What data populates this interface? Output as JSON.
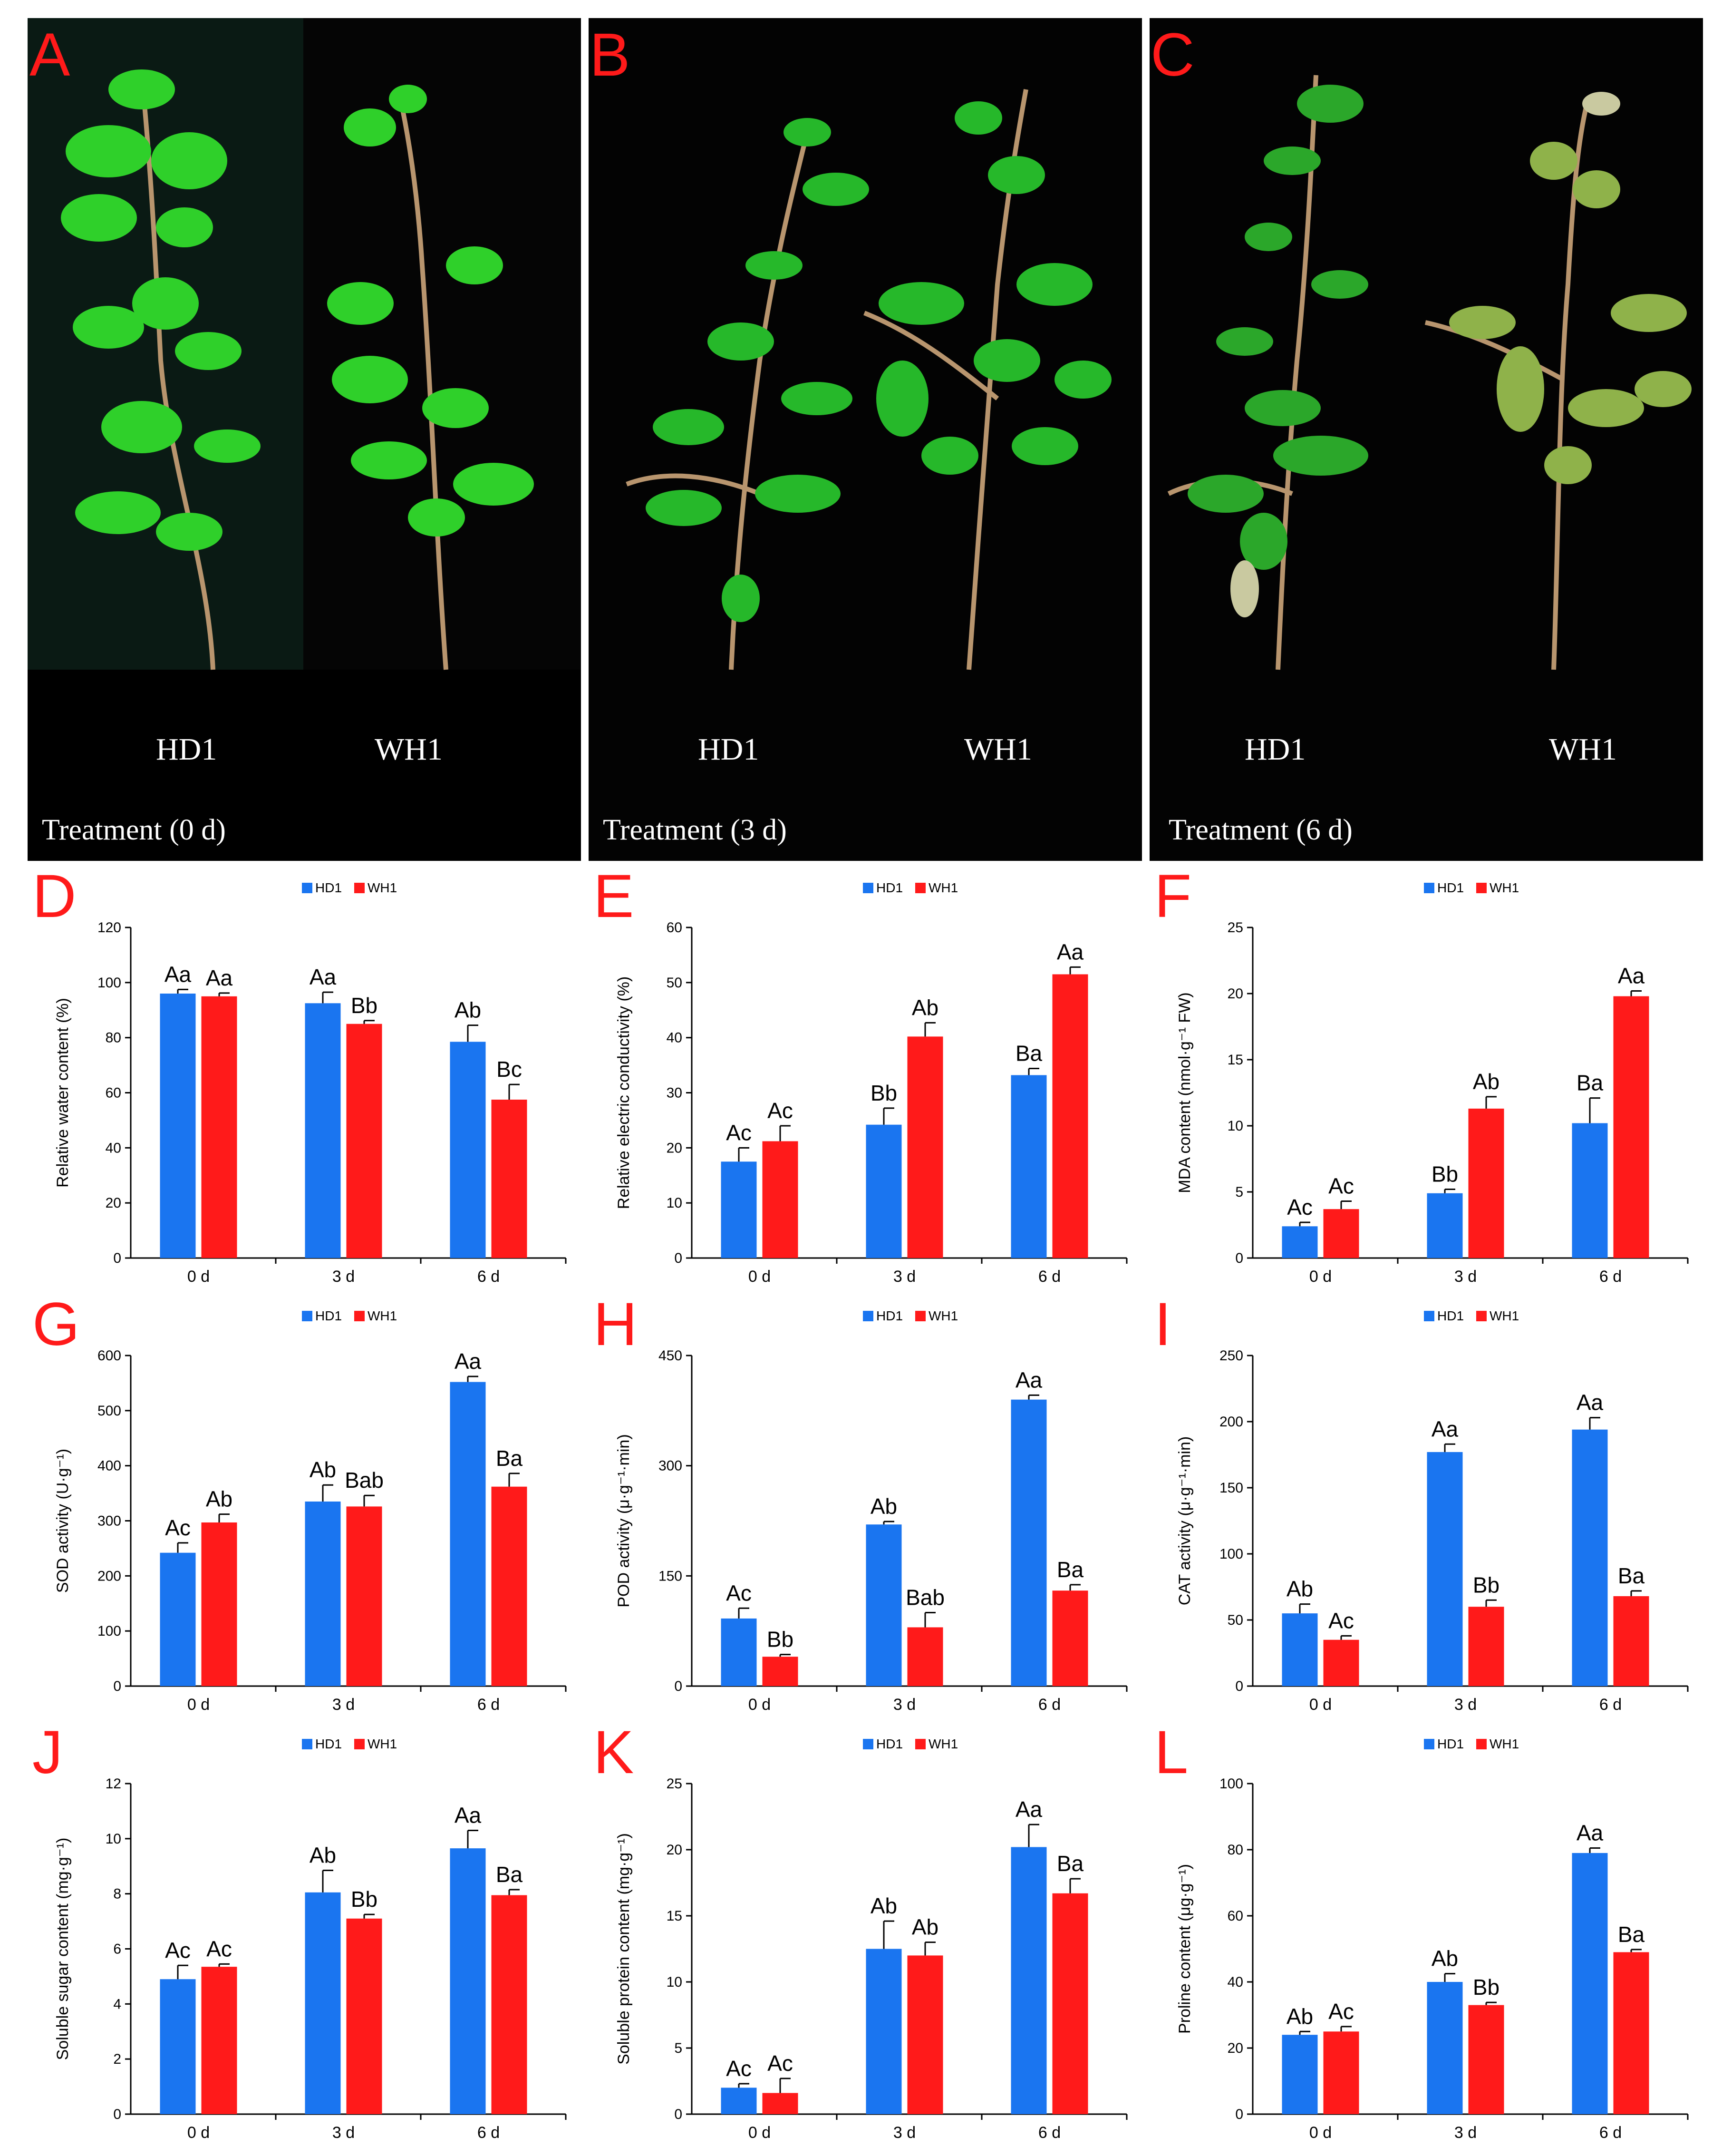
{
  "photos": [
    {
      "letter": "A",
      "left_label": "HD1",
      "right_label": "WH1",
      "caption": "Treatment (0 d)"
    },
    {
      "letter": "B",
      "left_label": "HD1",
      "right_label": "WH1",
      "caption": "Treatment (3 d)"
    },
    {
      "letter": "C",
      "left_label": "HD1",
      "right_label": "WH1",
      "caption": "Treatment (6 d)"
    }
  ],
  "colors": {
    "hd1": "#1a75f0",
    "wh1": "#ff1a1a",
    "letter": "#ff1a1a"
  },
  "chart_data": [
    {
      "letter": "D",
      "type": "bar",
      "ylabel": "Relative water content (%)",
      "ylim": [
        0,
        120
      ],
      "yticks": [
        0,
        20,
        40,
        60,
        80,
        100,
        120
      ],
      "categories": [
        "0 d",
        "3 d",
        "6 d"
      ],
      "legend": [
        "HD1",
        "WH1"
      ],
      "series": [
        {
          "name": "HD1",
          "values": [
            96,
            92.5,
            78.5
          ],
          "errors": [
            1.5,
            4,
            6
          ],
          "labels": [
            "Aa",
            "Aa",
            "Ab"
          ]
        },
        {
          "name": "WH1",
          "values": [
            95,
            85,
            57.5
          ],
          "errors": [
            1.2,
            1.2,
            5.5
          ],
          "labels": [
            "Aa",
            "Bb",
            "Bc"
          ]
        }
      ]
    },
    {
      "letter": "E",
      "type": "bar",
      "ylabel": "Relative electric conductivity (%)",
      "ylim": [
        0,
        60
      ],
      "yticks": [
        0,
        10,
        20,
        30,
        40,
        50,
        60
      ],
      "categories": [
        "0 d",
        "3 d",
        "6 d"
      ],
      "legend": [
        "HD1",
        "WH1"
      ],
      "series": [
        {
          "name": "HD1",
          "values": [
            17.5,
            24.2,
            33.2
          ],
          "errors": [
            2.5,
            3,
            1.2
          ],
          "labels": [
            "Ac",
            "Bb",
            "Ba"
          ]
        },
        {
          "name": "WH1",
          "values": [
            21.2,
            40.2,
            51.5
          ],
          "errors": [
            2.8,
            2.5,
            1.3
          ],
          "labels": [
            "Ac",
            "Ab",
            "Aa"
          ]
        }
      ]
    },
    {
      "letter": "F",
      "type": "bar",
      "ylabel": "MDA content (nmol·g⁻¹ FW)",
      "ylim": [
        0,
        25
      ],
      "yticks": [
        0,
        5,
        10,
        15,
        20,
        25
      ],
      "categories": [
        "0 d",
        "3 d",
        "6 d"
      ],
      "legend": [
        "HD1",
        "WH1"
      ],
      "series": [
        {
          "name": "HD1",
          "values": [
            2.4,
            4.9,
            10.2
          ],
          "errors": [
            0.3,
            0.3,
            1.9
          ],
          "labels": [
            "Ac",
            "Bb",
            "Ba"
          ]
        },
        {
          "name": "WH1",
          "values": [
            3.7,
            11.3,
            19.8
          ],
          "errors": [
            0.6,
            0.9,
            0.4
          ],
          "labels": [
            "Ac",
            "Ab",
            "Aa"
          ]
        }
      ]
    },
    {
      "letter": "G",
      "type": "bar",
      "ylabel": "SOD activity (U·g⁻¹)",
      "ylim": [
        0,
        600
      ],
      "yticks": [
        0,
        100,
        200,
        300,
        400,
        500,
        600
      ],
      "categories": [
        "0 d",
        "3 d",
        "6 d"
      ],
      "legend": [
        "HD1",
        "WH1"
      ],
      "series": [
        {
          "name": "HD1",
          "values": [
            242,
            335,
            552
          ],
          "errors": [
            18,
            30,
            10
          ],
          "labels": [
            "Ac",
            "Ab",
            "Aa"
          ]
        },
        {
          "name": "WH1",
          "values": [
            297,
            326,
            362
          ],
          "errors": [
            15,
            20,
            24
          ],
          "labels": [
            "Ab",
            "Bab",
            "Ba"
          ]
        }
      ]
    },
    {
      "letter": "H",
      "type": "bar",
      "ylabel": "POD activity (μ·g⁻¹·min)",
      "ylim": [
        0,
        450
      ],
      "yticks": [
        0,
        150,
        300,
        450
      ],
      "categories": [
        "0 d",
        "3 d",
        "6 d"
      ],
      "legend": [
        "HD1",
        "WH1"
      ],
      "series": [
        {
          "name": "HD1",
          "values": [
            92,
            220,
            390
          ],
          "errors": [
            14,
            4,
            6
          ],
          "labels": [
            "Ac",
            "Ab",
            "Aa"
          ]
        },
        {
          "name": "WH1",
          "values": [
            40,
            80,
            130
          ],
          "errors": [
            3,
            20,
            8
          ],
          "labels": [
            "Bb",
            "Bab",
            "Ba"
          ]
        }
      ]
    },
    {
      "letter": "I",
      "type": "bar",
      "ylabel": "CAT activity (μ·g⁻¹·min)",
      "ylim": [
        0,
        250
      ],
      "yticks": [
        0,
        50,
        100,
        150,
        200,
        250
      ],
      "categories": [
        "0 d",
        "3 d",
        "6 d"
      ],
      "legend": [
        "HD1",
        "WH1"
      ],
      "series": [
        {
          "name": "HD1",
          "values": [
            55,
            177,
            194
          ],
          "errors": [
            7,
            6,
            9
          ],
          "labels": [
            "Ab",
            "Aa",
            "Aa"
          ]
        },
        {
          "name": "WH1",
          "values": [
            35,
            60,
            68
          ],
          "errors": [
            3,
            5,
            4
          ],
          "labels": [
            "Ac",
            "Bb",
            "Ba"
          ]
        }
      ]
    },
    {
      "letter": "J",
      "type": "bar",
      "ylabel": "Soluble sugar content (mg·g⁻¹)",
      "ylim": [
        0,
        12
      ],
      "yticks": [
        0,
        2,
        4,
        6,
        8,
        10,
        12
      ],
      "categories": [
        "0 d",
        "3 d",
        "6 d"
      ],
      "legend": [
        "HD1",
        "WH1"
      ],
      "series": [
        {
          "name": "HD1",
          "values": [
            4.9,
            8.05,
            9.65
          ],
          "errors": [
            0.5,
            0.8,
            0.65
          ],
          "labels": [
            "Ac",
            "Ab",
            "Aa"
          ]
        },
        {
          "name": "WH1",
          "values": [
            5.35,
            7.1,
            7.95
          ],
          "errors": [
            0.1,
            0.15,
            0.2
          ],
          "labels": [
            "Ac",
            "Bb",
            "Ba"
          ]
        }
      ]
    },
    {
      "letter": "K",
      "type": "bar",
      "ylabel": "Soluble protein content (mg·g⁻¹)",
      "ylim": [
        0,
        25
      ],
      "yticks": [
        0,
        5,
        10,
        15,
        20,
        25
      ],
      "categories": [
        "0 d",
        "3 d",
        "6 d"
      ],
      "legend": [
        "HD1",
        "WH1"
      ],
      "series": [
        {
          "name": "HD1",
          "values": [
            2.0,
            12.5,
            20.2
          ],
          "errors": [
            0.3,
            2.1,
            1.7
          ],
          "labels": [
            "Ac",
            "Ab",
            "Aa"
          ]
        },
        {
          "name": "WH1",
          "values": [
            1.6,
            12.0,
            16.7
          ],
          "errors": [
            1.1,
            1.0,
            1.1
          ],
          "labels": [
            "Ac",
            "Ab",
            "Ba"
          ]
        }
      ]
    },
    {
      "letter": "L",
      "type": "bar",
      "ylabel": "Proline content (μg·g⁻¹)",
      "ylim": [
        0,
        100
      ],
      "yticks": [
        0,
        20,
        40,
        60,
        80,
        100
      ],
      "categories": [
        "0 d",
        "3 d",
        "6 d"
      ],
      "legend": [
        "HD1",
        "WH1"
      ],
      "series": [
        {
          "name": "HD1",
          "values": [
            24,
            40,
            79
          ],
          "errors": [
            1,
            2.5,
            1.5
          ],
          "labels": [
            "Ab",
            "Ab",
            "Aa"
          ]
        },
        {
          "name": "WH1",
          "values": [
            25,
            33,
            49
          ],
          "errors": [
            1.5,
            0.8,
            0.8
          ],
          "labels": [
            "Ac",
            "Bb",
            "Ba"
          ]
        }
      ]
    }
  ]
}
